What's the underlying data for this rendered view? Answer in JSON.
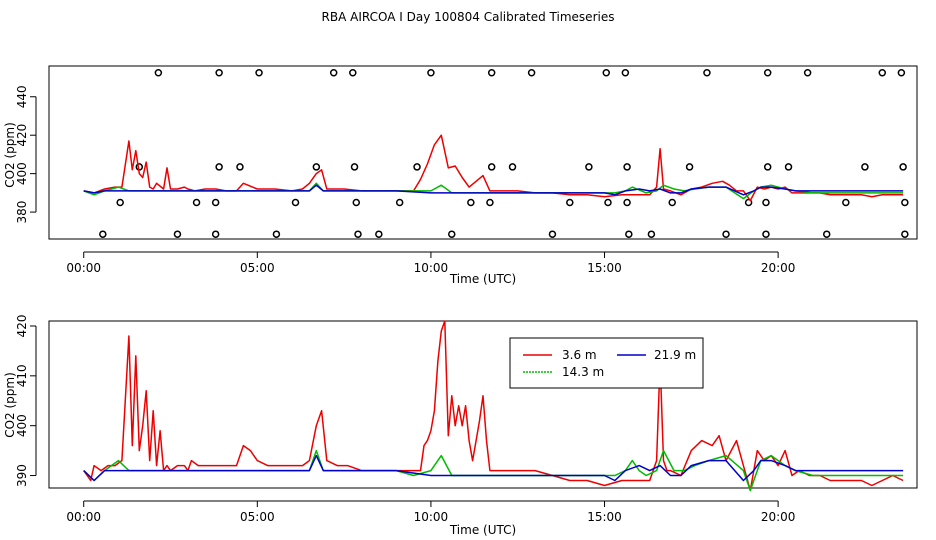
{
  "title": "RBA AIRCOA I  Day 100804  Calibrated Timeseries",
  "colors": {
    "red": "#ee0000",
    "green": "#00bb00",
    "blue": "#0000cc"
  },
  "chart_data": [
    {
      "type": "line",
      "panel": "top",
      "xlabel": "Time (UTC)",
      "ylabel": "CO2 (ppm)",
      "xlim": [
        -1,
        24
      ],
      "ylim": [
        366,
        456
      ],
      "x_ticks": [
        0,
        5,
        10,
        15,
        20
      ],
      "x_tick_labels": [
        "00:00",
        "05:00",
        "10:00",
        "15:00",
        "20:00"
      ],
      "y_ticks": [
        380,
        400,
        420,
        440
      ],
      "y_tick_labels": [
        "380",
        "400",
        "420",
        "440"
      ],
      "series": [
        {
          "name": "3.6 m",
          "color": "#ee0000",
          "x": [
            0.0,
            0.3,
            0.6,
            0.9,
            1.1,
            1.3,
            1.4,
            1.5,
            1.6,
            1.7,
            1.8,
            1.9,
            2.0,
            2.1,
            2.3,
            2.4,
            2.5,
            2.7,
            2.9,
            3.0,
            3.2,
            3.5,
            3.8,
            4.1,
            4.4,
            4.6,
            5.0,
            5.5,
            6.0,
            6.3,
            6.5,
            6.7,
            6.85,
            7.0,
            7.5,
            8.0,
            8.5,
            9.0,
            9.5,
            9.7,
            9.9,
            10.1,
            10.3,
            10.5,
            10.7,
            10.9,
            11.1,
            11.3,
            11.5,
            11.7,
            12.0,
            12.5,
            13.0,
            13.5,
            14.0,
            14.5,
            15.0,
            15.5,
            16.0,
            16.3,
            16.5,
            16.6,
            16.7,
            16.9,
            17.2,
            17.5,
            17.8,
            18.1,
            18.4,
            18.6,
            18.8,
            19.0,
            19.2,
            19.4,
            19.6,
            19.8,
            20.0,
            20.2,
            20.4,
            20.6,
            20.9,
            21.2,
            21.5,
            21.8,
            22.1,
            22.4,
            22.7,
            23.0,
            23.3,
            23.6
          ],
          "y": [
            391,
            390,
            392,
            393,
            393,
            417,
            402,
            412,
            400,
            398,
            406,
            393,
            392,
            395,
            392,
            403,
            392,
            392,
            393,
            392,
            391,
            392,
            392,
            391,
            391,
            395,
            392,
            392,
            391,
            392,
            395,
            400,
            402,
            392,
            392,
            391,
            391,
            391,
            391,
            397,
            405,
            415,
            420,
            403,
            404,
            398,
            393,
            396,
            399,
            391,
            391,
            391,
            390,
            390,
            389,
            389,
            388,
            389,
            389,
            389,
            393,
            413,
            392,
            391,
            389,
            392,
            393,
            395,
            396,
            394,
            391,
            391,
            386,
            393,
            392,
            393,
            392,
            393,
            390,
            390,
            390,
            390,
            389,
            389,
            389,
            389,
            388,
            389,
            389,
            389
          ]
        },
        {
          "name": "14.3 m",
          "color": "#00bb00",
          "x": [
            0.0,
            0.3,
            0.6,
            1.0,
            1.3,
            2.0,
            3.0,
            4.0,
            5.0,
            6.0,
            6.5,
            6.7,
            6.9,
            7.5,
            8.0,
            9.0,
            10.0,
            10.3,
            10.6,
            11.0,
            12.0,
            13.0,
            14.0,
            15.0,
            15.3,
            15.6,
            15.8,
            16.2,
            16.5,
            16.7,
            17.0,
            17.3,
            17.6,
            18.0,
            18.5,
            19.0,
            19.3,
            19.5,
            19.8,
            20.2,
            20.5,
            21.0,
            22.0,
            23.0,
            23.6
          ],
          "y": [
            391,
            389,
            391,
            393,
            391,
            391,
            391,
            391,
            391,
            391,
            391,
            395,
            391,
            391,
            391,
            391,
            391,
            394,
            390,
            390,
            390,
            390,
            390,
            390,
            390,
            391,
            393,
            390,
            391,
            394,
            392,
            391,
            392,
            393,
            393,
            387,
            391,
            393,
            394,
            392,
            391,
            390,
            390,
            390,
            390
          ]
        },
        {
          "name": "21.9 m",
          "color": "#0000cc",
          "x": [
            0.0,
            0.3,
            0.6,
            1.0,
            1.5,
            2.0,
            3.0,
            4.0,
            5.0,
            6.0,
            6.5,
            6.7,
            6.9,
            7.5,
            8.0,
            9.0,
            10.0,
            11.0,
            12.0,
            13.0,
            14.0,
            15.0,
            15.3,
            15.6,
            16.0,
            16.3,
            16.6,
            16.9,
            17.2,
            17.5,
            18.0,
            18.5,
            19.0,
            19.3,
            19.5,
            19.8,
            20.2,
            20.5,
            21.0,
            22.0,
            23.0,
            23.6
          ],
          "y": [
            391,
            390,
            391,
            391,
            391,
            391,
            391,
            391,
            391,
            391,
            391,
            394,
            391,
            391,
            391,
            391,
            390,
            390,
            390,
            390,
            390,
            390,
            389,
            391,
            392,
            391,
            392,
            390,
            390,
            392,
            393,
            393,
            389,
            391,
            393,
            393,
            392,
            391,
            391,
            391,
            391,
            391
          ]
        }
      ],
      "markers": [
        {
          "x": 2.15,
          "y": 452.5
        },
        {
          "x": 3.9,
          "y": 452.5
        },
        {
          "x": 5.05,
          "y": 452.5
        },
        {
          "x": 7.2,
          "y": 452.5
        },
        {
          "x": 7.75,
          "y": 452.5
        },
        {
          "x": 10.0,
          "y": 452.5
        },
        {
          "x": 11.75,
          "y": 452.5
        },
        {
          "x": 12.9,
          "y": 452.5
        },
        {
          "x": 15.05,
          "y": 452.5
        },
        {
          "x": 15.6,
          "y": 452.5
        },
        {
          "x": 17.95,
          "y": 452.5
        },
        {
          "x": 19.7,
          "y": 452.5
        },
        {
          "x": 20.85,
          "y": 452.5
        },
        {
          "x": 23.0,
          "y": 452.5
        },
        {
          "x": 23.55,
          "y": 452.5
        },
        {
          "x": 1.6,
          "y": 403.5
        },
        {
          "x": 3.9,
          "y": 403.5
        },
        {
          "x": 4.5,
          "y": 403.5
        },
        {
          "x": 6.7,
          "y": 403.5
        },
        {
          "x": 7.8,
          "y": 403.5
        },
        {
          "x": 9.6,
          "y": 403.5
        },
        {
          "x": 11.75,
          "y": 403.5
        },
        {
          "x": 12.35,
          "y": 403.5
        },
        {
          "x": 14.55,
          "y": 403.5
        },
        {
          "x": 15.65,
          "y": 403.5
        },
        {
          "x": 17.45,
          "y": 403.5
        },
        {
          "x": 19.7,
          "y": 403.5
        },
        {
          "x": 20.3,
          "y": 403.5
        },
        {
          "x": 22.5,
          "y": 403.5
        },
        {
          "x": 23.6,
          "y": 403.5
        },
        {
          "x": 1.05,
          "y": 385
        },
        {
          "x": 3.25,
          "y": 385
        },
        {
          "x": 3.8,
          "y": 385
        },
        {
          "x": 6.1,
          "y": 385
        },
        {
          "x": 7.85,
          "y": 385
        },
        {
          "x": 9.1,
          "y": 385
        },
        {
          "x": 11.15,
          "y": 385
        },
        {
          "x": 11.7,
          "y": 385
        },
        {
          "x": 14.0,
          "y": 385
        },
        {
          "x": 15.1,
          "y": 385
        },
        {
          "x": 15.65,
          "y": 385
        },
        {
          "x": 16.95,
          "y": 385
        },
        {
          "x": 19.15,
          "y": 385
        },
        {
          "x": 19.65,
          "y": 385
        },
        {
          "x": 21.95,
          "y": 385
        },
        {
          "x": 23.65,
          "y": 385
        },
        {
          "x": 0.55,
          "y": 368.5
        },
        {
          "x": 2.7,
          "y": 368.5
        },
        {
          "x": 3.8,
          "y": 368.5
        },
        {
          "x": 5.55,
          "y": 368.5
        },
        {
          "x": 7.9,
          "y": 368.5
        },
        {
          "x": 8.5,
          "y": 368.5
        },
        {
          "x": 10.6,
          "y": 368.5
        },
        {
          "x": 13.5,
          "y": 368.5
        },
        {
          "x": 15.7,
          "y": 368.5
        },
        {
          "x": 16.35,
          "y": 368.5
        },
        {
          "x": 18.5,
          "y": 368.5
        },
        {
          "x": 19.65,
          "y": 368.5
        },
        {
          "x": 21.4,
          "y": 368.5
        },
        {
          "x": 23.65,
          "y": 368.5
        }
      ]
    },
    {
      "type": "line",
      "panel": "bottom",
      "xlabel": "Time (UTC)",
      "ylabel": "CO2 (ppm)",
      "xlim": [
        -1,
        24
      ],
      "ylim": [
        387.5,
        421
      ],
      "x_ticks": [
        0,
        5,
        10,
        15,
        20
      ],
      "x_tick_labels": [
        "00:00",
        "05:00",
        "10:00",
        "15:00",
        "20:00"
      ],
      "y_ticks": [
        390,
        400,
        410,
        420
      ],
      "y_tick_labels": [
        "390",
        "400",
        "410",
        "420"
      ],
      "legend": "top-center",
      "series": [
        {
          "name": "3.6 m",
          "color": "#ee0000",
          "x": [
            0.0,
            0.2,
            0.3,
            0.5,
            0.7,
            0.9,
            1.1,
            1.3,
            1.4,
            1.5,
            1.6,
            1.7,
            1.8,
            1.9,
            2.0,
            2.1,
            2.2,
            2.3,
            2.4,
            2.5,
            2.7,
            2.9,
            3.0,
            3.1,
            3.3,
            3.5,
            3.8,
            4.1,
            4.4,
            4.6,
            4.8,
            5.0,
            5.3,
            5.6,
            6.0,
            6.3,
            6.5,
            6.7,
            6.85,
            7.0,
            7.3,
            7.6,
            8.0,
            8.5,
            9.0,
            9.5,
            9.7,
            9.8,
            9.9,
            10.0,
            10.1,
            10.2,
            10.3,
            10.4,
            10.5,
            10.6,
            10.7,
            10.8,
            10.9,
            11.0,
            11.1,
            11.2,
            11.3,
            11.4,
            11.5,
            11.6,
            11.7,
            11.8,
            12.0,
            12.5,
            13.0,
            13.5,
            14.0,
            14.5,
            15.0,
            15.5,
            15.8,
            16.0,
            16.3,
            16.5,
            16.6,
            16.7,
            16.8,
            16.9,
            17.2,
            17.5,
            17.8,
            18.1,
            18.3,
            18.5,
            18.8,
            19.0,
            19.2,
            19.4,
            19.6,
            19.8,
            20.0,
            20.2,
            20.4,
            20.6,
            20.9,
            21.2,
            21.5,
            21.8,
            22.1,
            22.4,
            22.7,
            23.0,
            23.3,
            23.6
          ],
          "y": [
            391,
            389,
            392,
            391,
            392,
            392,
            393,
            418,
            396,
            414,
            395,
            400,
            407,
            393,
            403,
            392,
            399,
            391,
            392,
            391,
            392,
            392,
            391,
            393,
            392,
            392,
            392,
            392,
            392,
            396,
            395,
            393,
            392,
            392,
            392,
            392,
            393,
            400,
            403,
            393,
            392,
            392,
            391,
            391,
            391,
            391,
            391,
            396,
            397,
            399,
            403,
            413,
            419,
            421,
            398,
            406,
            400,
            404,
            400,
            404,
            397,
            393,
            397,
            401,
            406,
            397,
            391,
            391,
            391,
            391,
            391,
            390,
            389,
            389,
            388,
            389,
            389,
            389,
            389,
            393,
            413,
            393,
            391,
            391,
            390,
            395,
            397,
            396,
            398,
            393,
            397,
            392,
            387,
            395,
            393,
            394,
            392,
            395,
            390,
            391,
            390,
            390,
            389,
            389,
            389,
            389,
            388,
            389,
            390,
            389
          ]
        },
        {
          "name": "14.3 m",
          "color": "#00bb00",
          "x": [
            0.0,
            0.3,
            0.6,
            1.0,
            1.3,
            2.0,
            3.0,
            4.0,
            5.0,
            6.0,
            6.5,
            6.7,
            6.9,
            7.5,
            8.0,
            9.0,
            9.5,
            10.0,
            10.3,
            10.6,
            11.0,
            12.0,
            13.0,
            14.0,
            15.0,
            15.3,
            15.6,
            15.8,
            16.0,
            16.2,
            16.5,
            16.7,
            17.0,
            17.3,
            17.6,
            18.0,
            18.5,
            19.0,
            19.2,
            19.5,
            19.8,
            20.2,
            20.5,
            21.0,
            22.0,
            23.0,
            23.6
          ],
          "y": [
            391,
            389,
            391,
            393,
            391,
            391,
            391,
            391,
            391,
            391,
            391,
            395,
            391,
            391,
            391,
            391,
            390,
            391,
            394,
            390,
            390,
            390,
            390,
            390,
            390,
            390,
            391,
            393,
            391,
            390,
            391,
            395,
            391,
            391,
            392,
            393,
            394,
            391,
            387,
            393,
            394,
            392,
            391,
            390,
            390,
            390,
            390
          ]
        },
        {
          "name": "21.9 m",
          "color": "#0000cc",
          "x": [
            0.0,
            0.3,
            0.6,
            1.0,
            1.5,
            2.0,
            3.0,
            4.0,
            5.0,
            6.0,
            6.5,
            6.7,
            6.9,
            7.5,
            8.0,
            9.0,
            10.0,
            11.0,
            12.0,
            13.0,
            14.0,
            15.0,
            15.3,
            15.6,
            16.0,
            16.3,
            16.6,
            16.9,
            17.2,
            17.5,
            18.0,
            18.5,
            19.0,
            19.3,
            19.5,
            19.8,
            20.2,
            20.5,
            21.0,
            22.0,
            23.0,
            23.6
          ],
          "y": [
            391,
            389,
            391,
            391,
            391,
            391,
            391,
            391,
            391,
            391,
            391,
            394,
            391,
            391,
            391,
            391,
            390,
            390,
            390,
            390,
            390,
            390,
            389,
            391,
            392,
            391,
            392,
            390,
            390,
            392,
            393,
            393,
            389,
            391,
            393,
            393,
            392,
            391,
            391,
            391,
            391,
            391
          ]
        }
      ]
    }
  ]
}
